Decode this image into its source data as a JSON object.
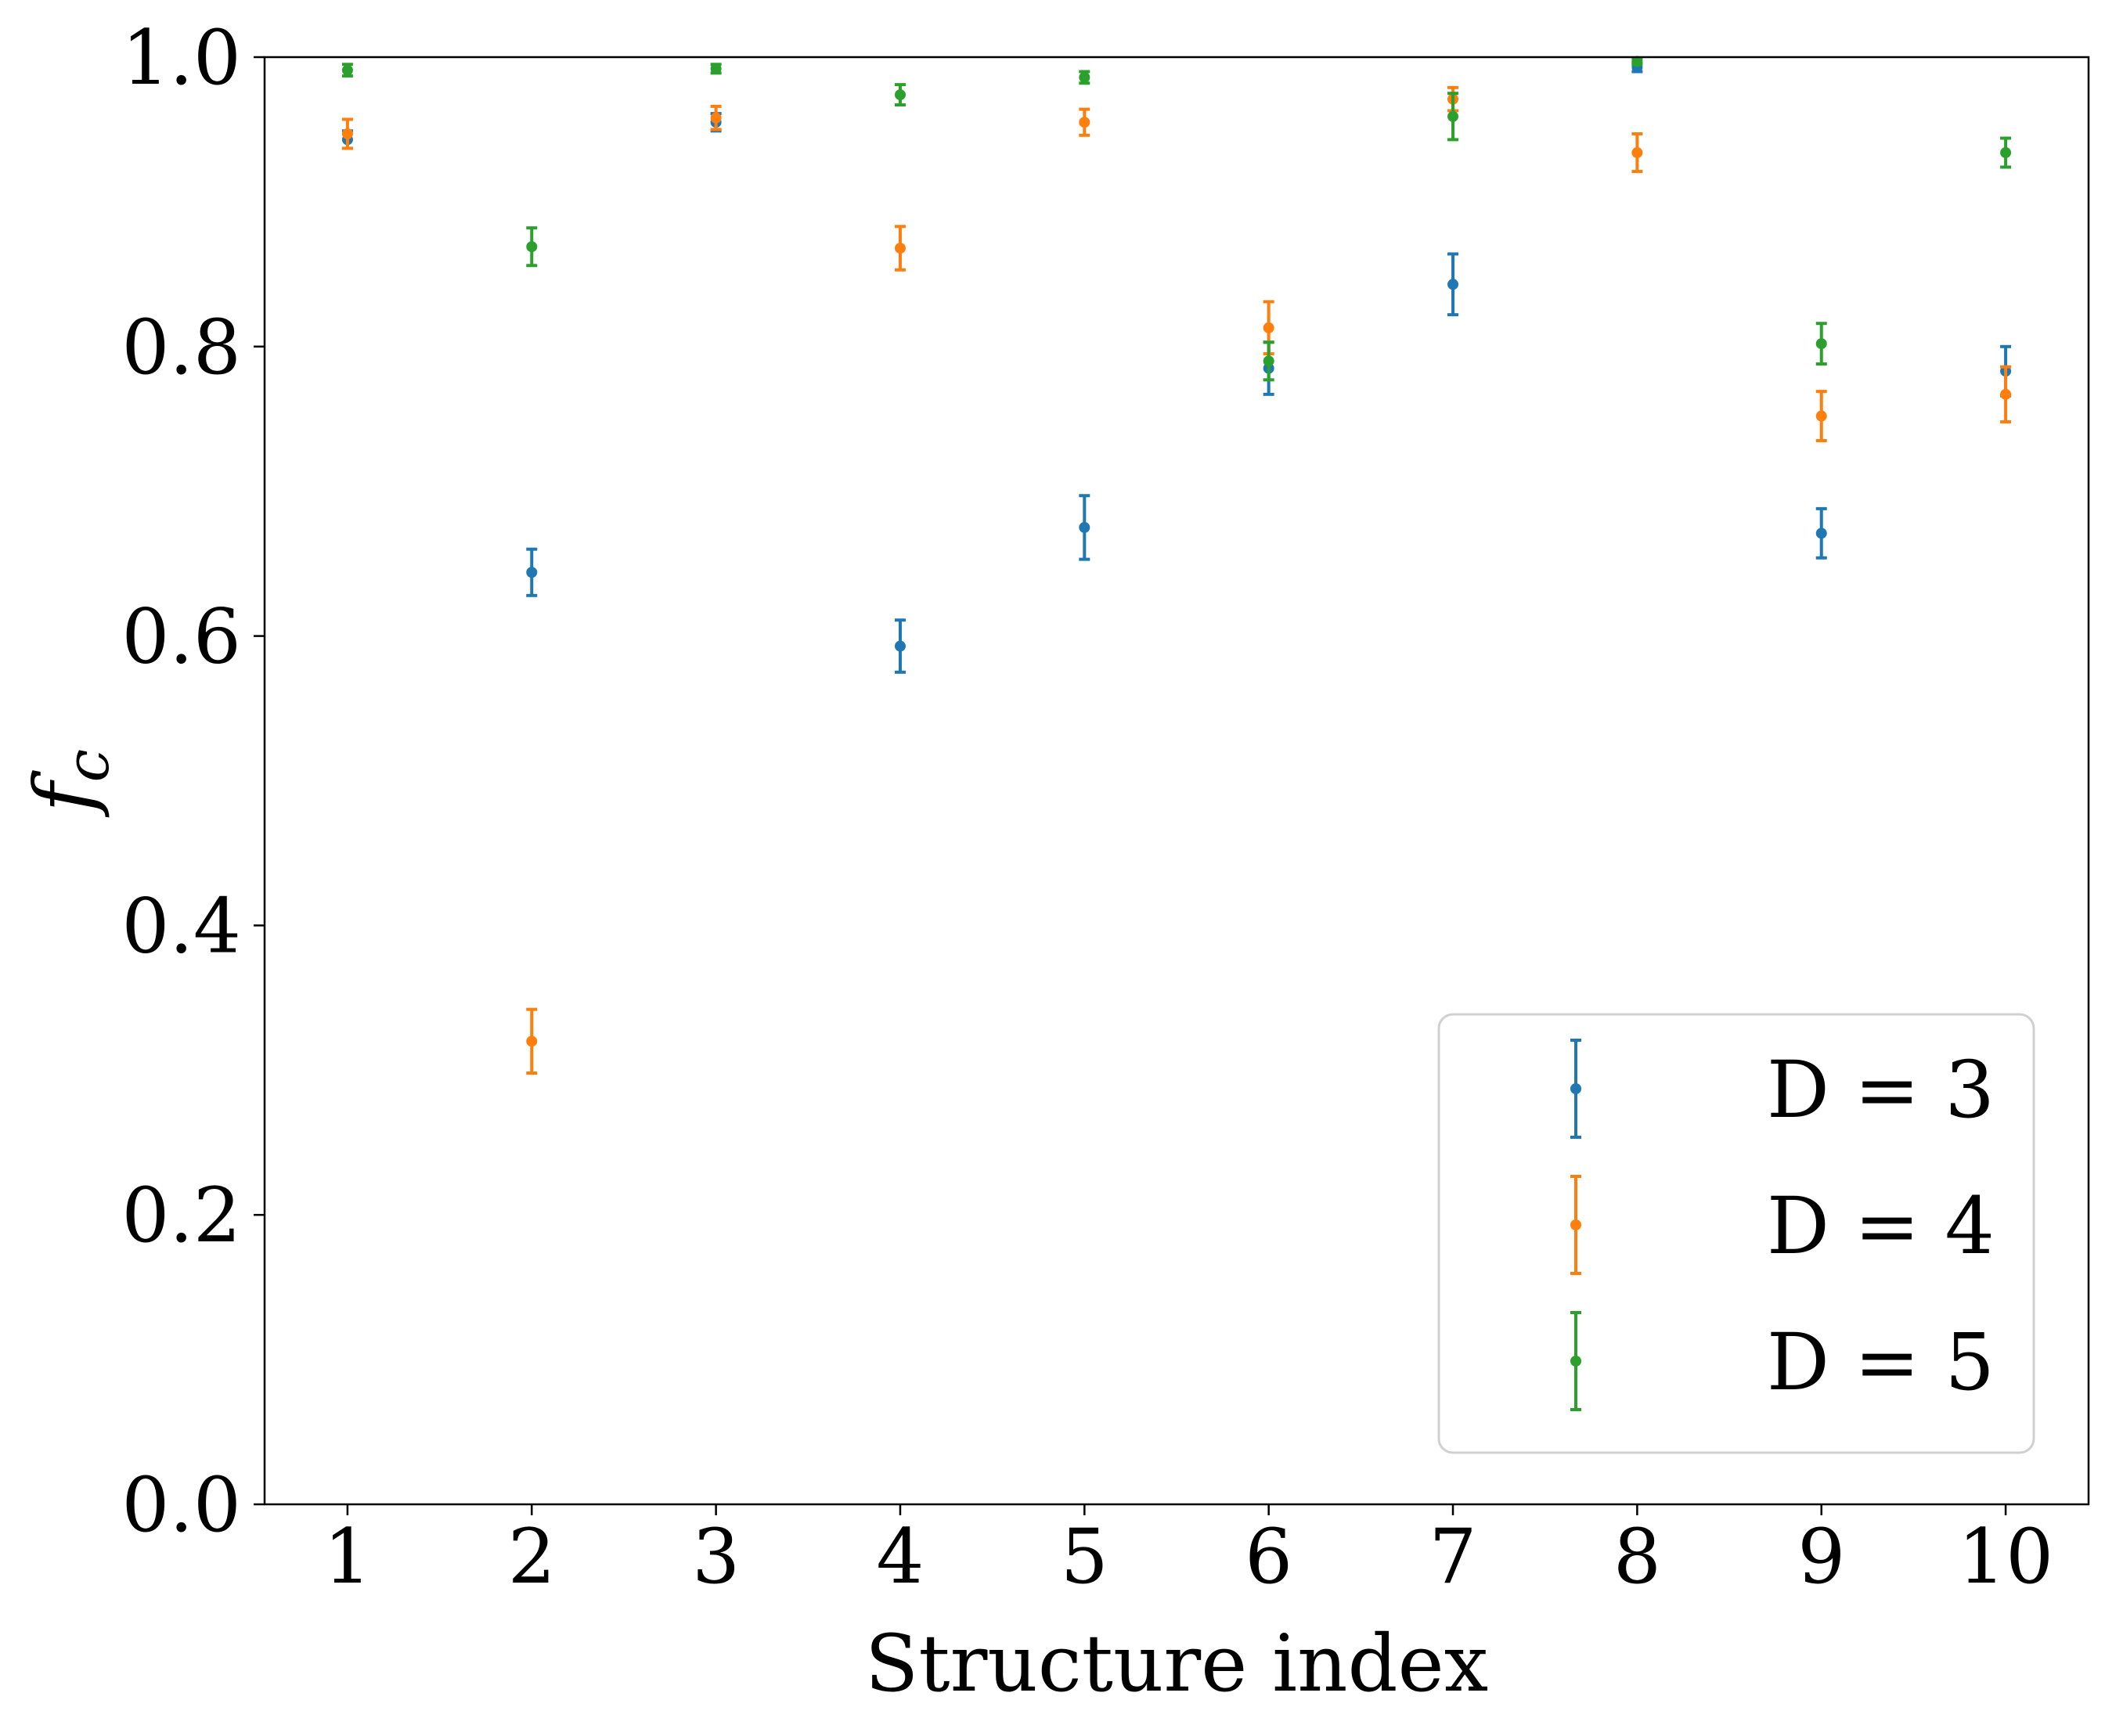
{
  "chart_data": {
    "type": "scatter",
    "title": "",
    "xlabel": "Structure index",
    "ylabel": "f_c",
    "ylabel_main": "f",
    "ylabel_sub": "c",
    "xlim": [
      0.55,
      10.45
    ],
    "ylim": [
      0.0,
      1.0
    ],
    "xticks": [
      1,
      2,
      3,
      4,
      5,
      6,
      7,
      8,
      9,
      10
    ],
    "xtick_labels": [
      "1",
      "2",
      "3",
      "4",
      "5",
      "6",
      "7",
      "8",
      "9",
      "10"
    ],
    "yticks": [
      0.0,
      0.2,
      0.4,
      0.6,
      0.8,
      1.0
    ],
    "ytick_labels": [
      "0.0",
      "0.2",
      "0.4",
      "0.6",
      "0.8",
      "1.0"
    ],
    "grid": false,
    "legend_position": "lower-right",
    "series": [
      {
        "name": "D = 3",
        "color": "#1f77b4",
        "x": [
          1,
          2,
          3,
          4,
          5,
          6,
          7,
          8,
          9,
          10
        ],
        "y": [
          0.943,
          0.644,
          0.955,
          0.593,
          0.675,
          0.785,
          0.843,
          0.993,
          0.671,
          0.783
        ],
        "err": [
          0.006,
          0.016,
          0.006,
          0.018,
          0.022,
          0.018,
          0.021,
          0.003,
          0.017,
          0.017
        ]
      },
      {
        "name": "D = 4",
        "color": "#ff7f0e",
        "x": [
          1,
          2,
          3,
          4,
          5,
          6,
          7,
          8,
          9,
          10
        ],
        "y": [
          0.947,
          0.32,
          0.958,
          0.868,
          0.955,
          0.813,
          0.971,
          0.934,
          0.752,
          0.767
        ],
        "err": [
          0.01,
          0.022,
          0.008,
          0.015,
          0.009,
          0.018,
          0.008,
          0.013,
          0.017,
          0.019
        ]
      },
      {
        "name": "D = 5",
        "color": "#2ca02c",
        "x": [
          1,
          2,
          3,
          4,
          5,
          6,
          7,
          8,
          9,
          10
        ],
        "y": [
          0.991,
          0.869,
          0.992,
          0.974,
          0.986,
          0.79,
          0.959,
          0.997,
          0.802,
          0.934
        ],
        "err": [
          0.004,
          0.013,
          0.003,
          0.007,
          0.004,
          0.013,
          0.016,
          0.002,
          0.014,
          0.01
        ]
      }
    ]
  }
}
